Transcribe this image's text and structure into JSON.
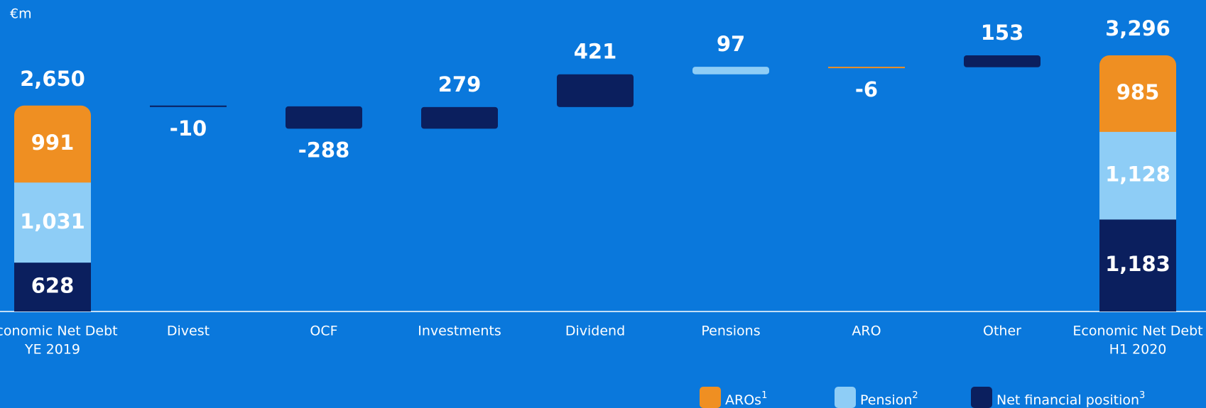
{
  "chart_data": {
    "type": "waterfall",
    "unit_label": "€m",
    "categories": [
      [
        "Economic Net Debt",
        "YE 2019"
      ],
      [
        "Divest"
      ],
      [
        "OCF"
      ],
      [
        "Investments"
      ],
      [
        "Dividend"
      ],
      [
        "Pensions"
      ],
      [
        "ARO"
      ],
      [
        "Other"
      ],
      [
        "Economic Net Debt",
        "H1 2020"
      ]
    ],
    "series": [
      {
        "name": "Net financial position",
        "footnote": "3",
        "color": "#0b1f5e",
        "values": [
          628,
          null,
          null,
          null,
          null,
          null,
          null,
          null,
          1183
        ],
        "value_labels": [
          "628",
          null,
          null,
          null,
          null,
          null,
          null,
          null,
          "1,183"
        ]
      },
      {
        "name": "Pension",
        "footnote": "2",
        "color": "#8ecdf6",
        "values": [
          1031,
          null,
          null,
          null,
          null,
          null,
          null,
          null,
          1128
        ],
        "value_labels": [
          "1,031",
          null,
          null,
          null,
          null,
          null,
          null,
          null,
          "1,128"
        ]
      },
      {
        "name": "AROs",
        "footnote": "1",
        "color": "#ef8f22",
        "values": [
          991,
          null,
          null,
          null,
          null,
          null,
          null,
          null,
          985
        ],
        "value_labels": [
          "991",
          null,
          null,
          null,
          null,
          null,
          null,
          null,
          "985"
        ]
      }
    ],
    "totals": [
      2650,
      null,
      null,
      null,
      null,
      null,
      null,
      null,
      3296
    ],
    "total_labels": [
      "2,650",
      null,
      null,
      null,
      null,
      null,
      null,
      null,
      "3,296"
    ],
    "deltas": [
      null,
      -10,
      -288,
      279,
      421,
      97,
      -6,
      153,
      null
    ],
    "delta_colors": [
      null,
      "#0b1f5e",
      "#0b1f5e",
      "#0b1f5e",
      "#0b1f5e",
      "#8ecdf6",
      "#ef8f22",
      "#0b1f5e",
      null
    ],
    "legend_order": [
      2,
      1,
      0
    ]
  }
}
